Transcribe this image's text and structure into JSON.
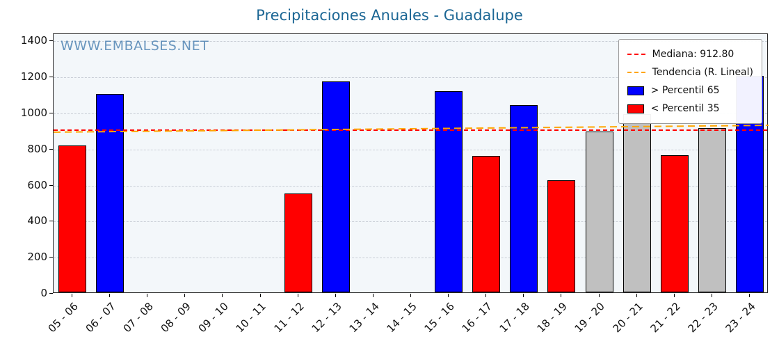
{
  "title": "Precipitaciones Anuales - Guadalupe",
  "watermark": "WWW.EMBALSES.NET",
  "legend": {
    "median_label": "Mediana: 912.80",
    "trend_label": "Tendencia (R. Lineal)",
    "above_label": "> Percentil 65",
    "below_label": "< Percentil 35"
  },
  "colors": {
    "title": "#1b6694",
    "watermark": "rgba(70,125,175,0.8)",
    "above": "#0000ff",
    "below": "#ff0000",
    "mid": "#c0c0c0",
    "median_line": "#ff0000",
    "trend_line": "#ffa500",
    "plot_bg": "#f3f7fa",
    "grid": "#c9ced6"
  },
  "chart_data": {
    "type": "bar",
    "title": "Precipitaciones Anuales - Guadalupe",
    "xlabel": "",
    "ylabel": "",
    "categories": [
      "05 - 06",
      "06 - 07",
      "07 - 08",
      "08 - 09",
      "09 - 10",
      "10 - 11",
      "11 - 12",
      "12 - 13",
      "13 - 14",
      "14 - 15",
      "15 - 16",
      "16 - 17",
      "17 - 18",
      "18 - 19",
      "19 - 20",
      "20 - 21",
      "21 - 22",
      "22 - 23",
      "23 - 24"
    ],
    "values": [
      815,
      1100,
      null,
      null,
      null,
      null,
      550,
      1170,
      null,
      null,
      1115,
      755,
      1040,
      620,
      890,
      990,
      760,
      910,
      1200
    ],
    "bar_classes": [
      "below",
      "above",
      null,
      null,
      null,
      null,
      "below",
      "above",
      null,
      null,
      "above",
      "below",
      "above",
      "below",
      "mid",
      "mid",
      "below",
      "mid",
      "above"
    ],
    "median": 912.8,
    "trend": {
      "start": 896,
      "end": 934
    },
    "ylim": [
      0,
      1440
    ],
    "yticks": [
      0,
      200,
      400,
      600,
      800,
      1000,
      1200,
      1400
    ],
    "grid": true,
    "legend_position": "top-right"
  }
}
